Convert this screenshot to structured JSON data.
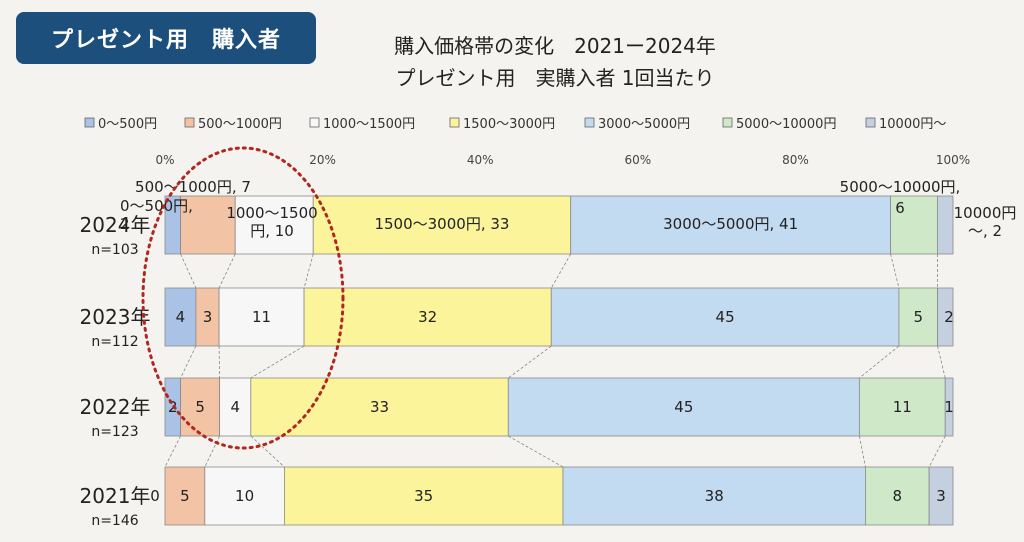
{
  "badge": "プレゼント用　購入者",
  "title_line1": "購入価格帯の変化　2021ー2024年",
  "title_line2": "プレゼント用　実購入者 1回当たり",
  "chart_data": {
    "type": "bar",
    "orientation": "horizontal-stacked-100",
    "legend_position": "top",
    "x_ticks": [
      "0%",
      "20%",
      "40%",
      "60%",
      "80%",
      "100%"
    ],
    "series": [
      {
        "name": "0～500円",
        "color": "#a9c2e6",
        "values": [
          2,
          4,
          2,
          0
        ]
      },
      {
        "name": "500～1000円",
        "color": "#f2c3a4",
        "values": [
          7,
          3,
          5,
          5
        ]
      },
      {
        "name": "1000～1500円",
        "color": "#f7f7f7",
        "values": [
          10,
          11,
          4,
          10
        ]
      },
      {
        "name": "1500～3000円",
        "color": "#fbf49a",
        "values": [
          33,
          32,
          33,
          35
        ]
      },
      {
        "name": "3000～5000円",
        "color": "#c2dbf1",
        "values": [
          41,
          45,
          45,
          38
        ]
      },
      {
        "name": "5000～10000円",
        "color": "#cfe9c8",
        "values": [
          6,
          5,
          11,
          8
        ]
      },
      {
        "name": "10000円～",
        "color": "#c4cfe0",
        "values": [
          2,
          2,
          1,
          3
        ]
      }
    ],
    "rows": [
      {
        "year": "2024年",
        "n": "n=103"
      },
      {
        "year": "2023年",
        "n": "n=112"
      },
      {
        "year": "2022年",
        "n": "n=123"
      },
      {
        "year": "2021年",
        "n": "n=146"
      }
    ],
    "labels_2024": {
      "s0": [
        "0～500円,",
        "2"
      ],
      "s1": [
        "500～1000円, 7"
      ],
      "s2": [
        "1000～1500",
        "円, 10"
      ],
      "s3": [
        "1500～3000円, 33"
      ],
      "s4": [
        "3000～5000円, 41"
      ],
      "s5a": [
        "5000～10000円,"
      ],
      "s5b": [
        "6"
      ],
      "s6": [
        "10000円",
        "～, 2"
      ]
    }
  }
}
